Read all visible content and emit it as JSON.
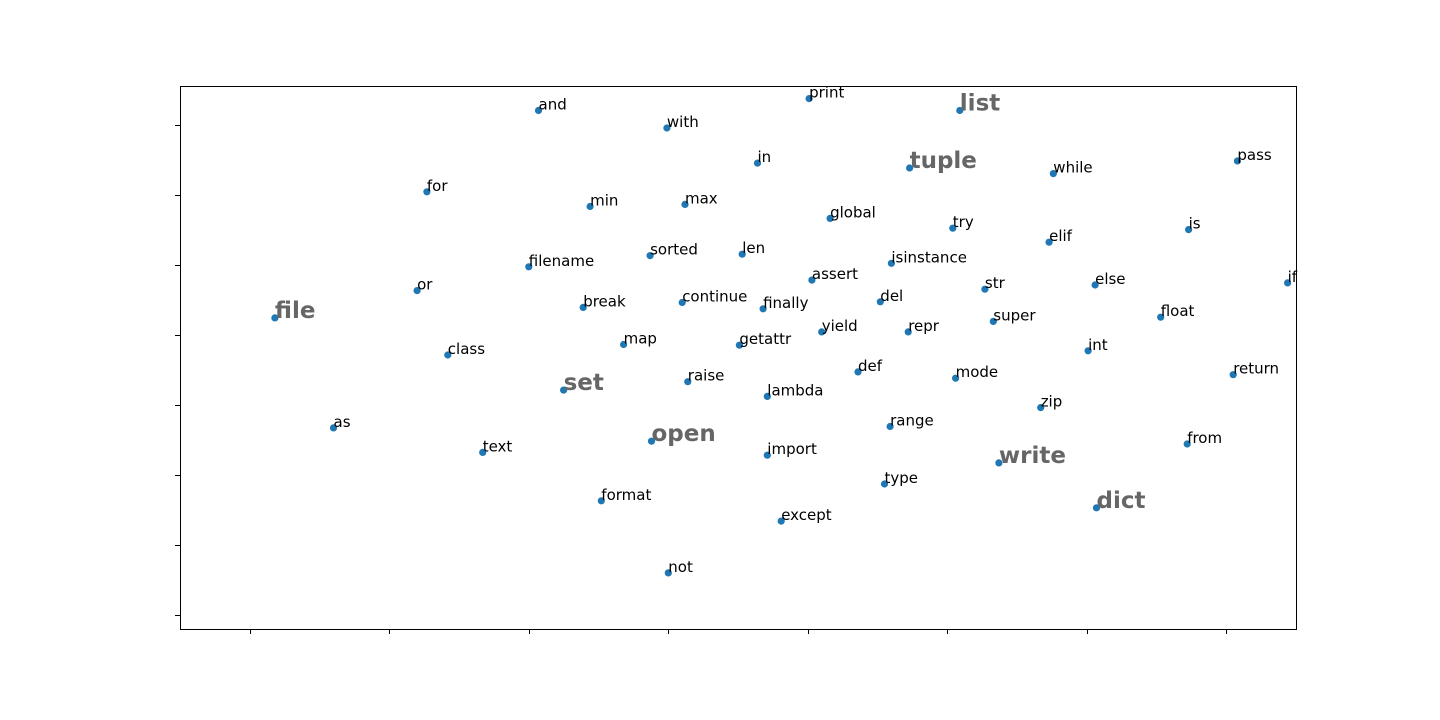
{
  "chart_data": {
    "type": "scatter",
    "title": "",
    "xlabel": "",
    "ylabel": "",
    "xlim": [
      -0.5,
      7.5
    ],
    "ylim": [
      -0.7,
      7.05
    ],
    "grid": false,
    "tick_labels_shown": false,
    "x_ticks": [
      0,
      1,
      2,
      3,
      4,
      5,
      6,
      7
    ],
    "y_ticks": [
      -0.5,
      0.5,
      1.5,
      2.5,
      3.5,
      4.5,
      5.5,
      6.5
    ],
    "marker_color": "#1f77b4",
    "highlight_color": "#666666",
    "points": [
      {
        "label": "print",
        "x": 4.01,
        "y": 6.87,
        "highlight": false
      },
      {
        "label": "list",
        "x": 5.09,
        "y": 6.7,
        "highlight": true
      },
      {
        "label": "and",
        "x": 2.07,
        "y": 6.7,
        "highlight": false
      },
      {
        "label": "with",
        "x": 2.99,
        "y": 6.45,
        "highlight": false
      },
      {
        "label": "in",
        "x": 3.64,
        "y": 5.95,
        "highlight": false
      },
      {
        "label": "tuple",
        "x": 4.73,
        "y": 5.88,
        "highlight": true
      },
      {
        "label": "while",
        "x": 5.76,
        "y": 5.8,
        "highlight": false
      },
      {
        "label": "pass",
        "x": 7.08,
        "y": 5.98,
        "highlight": false
      },
      {
        "label": "for",
        "x": 1.27,
        "y": 5.54,
        "highlight": false
      },
      {
        "label": "min",
        "x": 2.44,
        "y": 5.33,
        "highlight": false
      },
      {
        "label": "max",
        "x": 3.12,
        "y": 5.36,
        "highlight": false
      },
      {
        "label": "global",
        "x": 4.16,
        "y": 5.16,
        "highlight": false
      },
      {
        "label": "try",
        "x": 5.04,
        "y": 5.02,
        "highlight": false
      },
      {
        "label": "is",
        "x": 6.73,
        "y": 5.0,
        "highlight": false
      },
      {
        "label": "elif",
        "x": 5.73,
        "y": 4.82,
        "highlight": false
      },
      {
        "label": "filename",
        "x": 2.0,
        "y": 4.47,
        "highlight": false
      },
      {
        "label": "sorted",
        "x": 2.87,
        "y": 4.63,
        "highlight": false
      },
      {
        "label": "len",
        "x": 3.53,
        "y": 4.65,
        "highlight": false
      },
      {
        "label": "isinstance",
        "x": 4.6,
        "y": 4.52,
        "highlight": false
      },
      {
        "label": "assert",
        "x": 4.03,
        "y": 4.28,
        "highlight": false
      },
      {
        "label": "str",
        "x": 5.27,
        "y": 4.15,
        "highlight": false
      },
      {
        "label": "else",
        "x": 6.06,
        "y": 4.21,
        "highlight": false
      },
      {
        "label": "if",
        "x": 7.44,
        "y": 4.24,
        "highlight": false
      },
      {
        "label": "or",
        "x": 1.2,
        "y": 4.13,
        "highlight": false
      },
      {
        "label": "file",
        "x": 0.18,
        "y": 3.74,
        "highlight": true
      },
      {
        "label": "break",
        "x": 2.39,
        "y": 3.89,
        "highlight": false
      },
      {
        "label": "continue",
        "x": 3.1,
        "y": 3.96,
        "highlight": false
      },
      {
        "label": "finally",
        "x": 3.68,
        "y": 3.87,
        "highlight": false
      },
      {
        "label": "del",
        "x": 4.52,
        "y": 3.97,
        "highlight": false
      },
      {
        "label": "float",
        "x": 6.53,
        "y": 3.75,
        "highlight": false
      },
      {
        "label": "super",
        "x": 5.33,
        "y": 3.69,
        "highlight": false
      },
      {
        "label": "yield",
        "x": 4.1,
        "y": 3.54,
        "highlight": false
      },
      {
        "label": "repr",
        "x": 4.72,
        "y": 3.54,
        "highlight": false
      },
      {
        "label": "class",
        "x": 1.42,
        "y": 3.21,
        "highlight": false
      },
      {
        "label": "map",
        "x": 2.68,
        "y": 3.36,
        "highlight": false
      },
      {
        "label": "getattr",
        "x": 3.51,
        "y": 3.35,
        "highlight": false
      },
      {
        "label": "int",
        "x": 6.01,
        "y": 3.27,
        "highlight": false
      },
      {
        "label": "return",
        "x": 7.05,
        "y": 2.93,
        "highlight": false
      },
      {
        "label": "def",
        "x": 4.36,
        "y": 2.97,
        "highlight": false
      },
      {
        "label": "mode",
        "x": 5.06,
        "y": 2.88,
        "highlight": false
      },
      {
        "label": "set",
        "x": 2.25,
        "y": 2.71,
        "highlight": true
      },
      {
        "label": "raise",
        "x": 3.14,
        "y": 2.83,
        "highlight": false
      },
      {
        "label": "lambda",
        "x": 3.71,
        "y": 2.62,
        "highlight": false
      },
      {
        "label": "zip",
        "x": 5.67,
        "y": 2.46,
        "highlight": false
      },
      {
        "label": "as",
        "x": 0.6,
        "y": 2.17,
        "highlight": false
      },
      {
        "label": "range",
        "x": 4.59,
        "y": 2.19,
        "highlight": false
      },
      {
        "label": "open",
        "x": 2.88,
        "y": 1.98,
        "highlight": true
      },
      {
        "label": "from",
        "x": 6.72,
        "y": 1.94,
        "highlight": false
      },
      {
        "label": "text",
        "x": 1.67,
        "y": 1.82,
        "highlight": false
      },
      {
        "label": "import",
        "x": 3.71,
        "y": 1.78,
        "highlight": false
      },
      {
        "label": "write",
        "x": 5.37,
        "y": 1.67,
        "highlight": true
      },
      {
        "label": "type",
        "x": 4.55,
        "y": 1.37,
        "highlight": false
      },
      {
        "label": "dict",
        "x": 6.07,
        "y": 1.03,
        "highlight": true
      },
      {
        "label": "format",
        "x": 2.52,
        "y": 1.13,
        "highlight": false
      },
      {
        "label": "except",
        "x": 3.81,
        "y": 0.84,
        "highlight": false
      },
      {
        "label": "not",
        "x": 3.0,
        "y": 0.1,
        "highlight": false
      }
    ]
  }
}
